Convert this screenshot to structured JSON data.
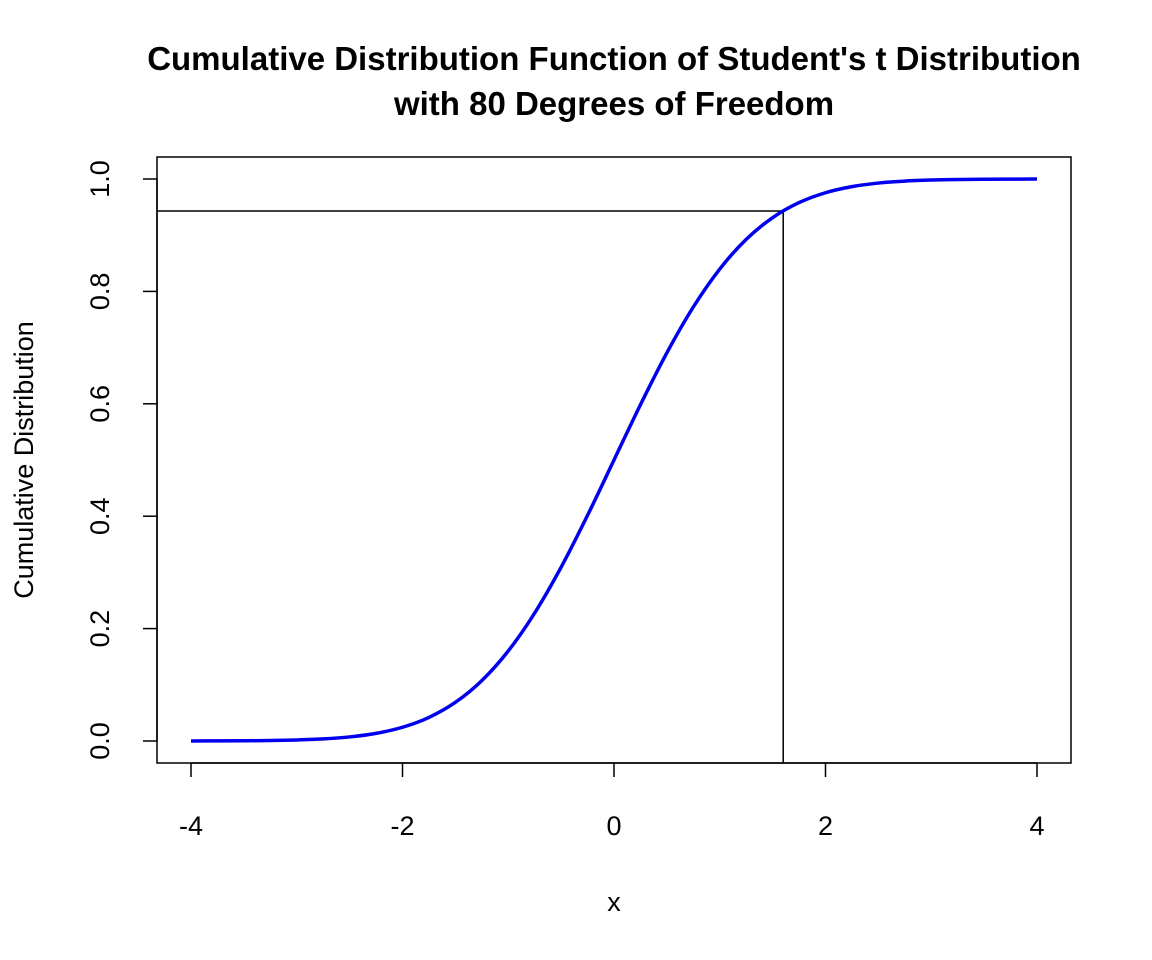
{
  "chart_data": {
    "type": "line",
    "title": "Cumulative Distribution Function of Student's t Distribution",
    "subtitle": "with 80 Degrees of Freedom",
    "xlabel": "x",
    "ylabel": "Cumulative Distribution",
    "xlim": [
      -4,
      4
    ],
    "ylim": [
      0,
      1
    ],
    "x_ticks": [
      -4,
      -2,
      0,
      2,
      4
    ],
    "y_ticks": [
      0.0,
      0.2,
      0.4,
      0.6,
      0.8,
      1.0
    ],
    "x_tick_labels": [
      "-4",
      "-2",
      "0",
      "2",
      "4"
    ],
    "y_tick_labels": [
      "0.0",
      "0.2",
      "0.4",
      "0.6",
      "0.8",
      "1.0"
    ],
    "grid": false,
    "series": [
      {
        "color": "#0000ee",
        "x": [
          -4.0,
          -3.75,
          -3.5,
          -3.25,
          -3.0,
          -2.75,
          -2.5,
          -2.25,
          -2.0,
          -1.75,
          -1.5,
          -1.25,
          -1.0,
          -0.75,
          -0.5,
          -0.25,
          0.0,
          0.25,
          0.5,
          0.75,
          1.0,
          1.25,
          1.5,
          1.75,
          2.0,
          2.25,
          2.5,
          2.75,
          3.0,
          3.25,
          3.5,
          3.75,
          4.0
        ],
        "y": [
          7e-05,
          0.00017,
          0.00038,
          0.00084,
          0.0018,
          0.00368,
          0.00724,
          0.0136,
          0.02445,
          0.04198,
          0.06876,
          0.10743,
          0.16017,
          0.22776,
          0.30924,
          0.40163,
          0.5,
          0.59837,
          0.69076,
          0.77224,
          0.83983,
          0.89257,
          0.93124,
          0.95802,
          0.97555,
          0.9864,
          0.99276,
          0.99632,
          0.9982,
          0.99916,
          0.99962,
          0.99983,
          0.99993
        ]
      }
    ],
    "reference_lines": {
      "color": "#000000",
      "x": 1.6,
      "y": 0.943
    }
  }
}
